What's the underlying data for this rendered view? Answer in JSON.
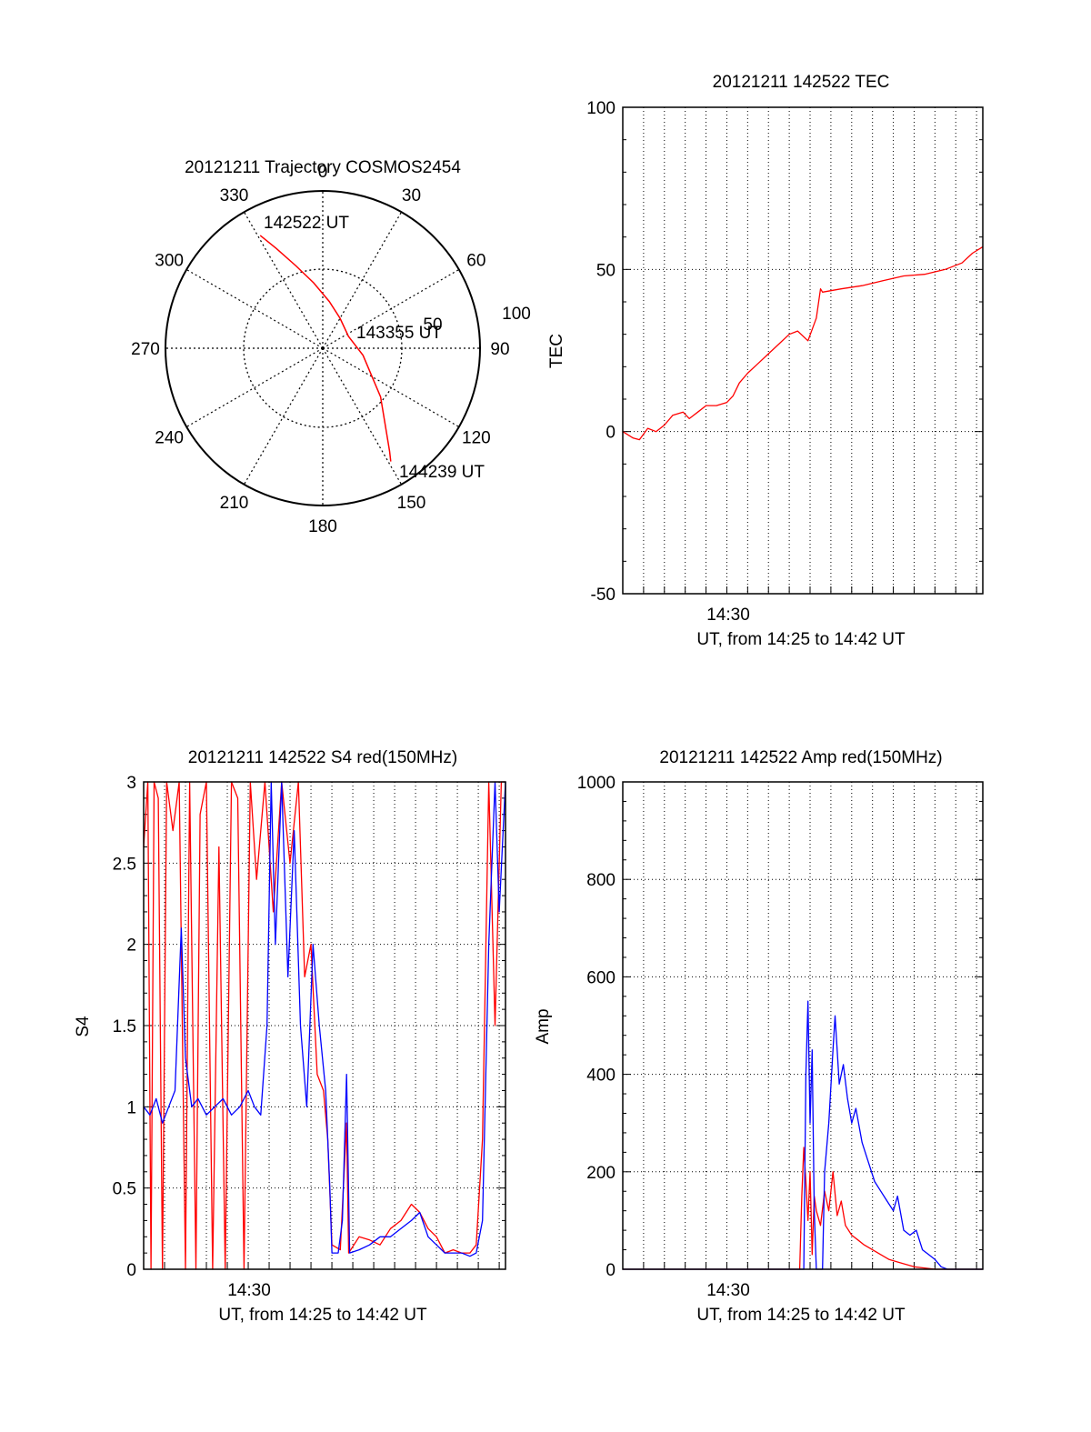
{
  "figure": {
    "colors": {
      "red": "#ff0000",
      "blue": "#0000ff",
      "axis": "#000000"
    }
  },
  "chart_data": [
    {
      "type": "polar-trajectory",
      "title": "20121211 Trajectory COSMOS2454",
      "azimuth_ticks": [
        "0",
        "30",
        "60",
        "90",
        "120",
        "150",
        "180",
        "210",
        "240",
        "270",
        "300",
        "330"
      ],
      "elevation_ring_labels": [
        "50",
        "100"
      ],
      "track": {
        "color": "#ff0000",
        "points_az_r": [
          [
            -29,
            0.82
          ],
          [
            -25,
            0.7
          ],
          [
            -18,
            0.55
          ],
          [
            -8,
            0.42
          ],
          [
            8,
            0.3
          ],
          [
            30,
            0.22
          ],
          [
            65,
            0.18
          ],
          [
            100,
            0.26
          ],
          [
            130,
            0.48
          ],
          [
            147,
            0.78
          ],
          [
            149,
            0.84
          ]
        ]
      },
      "annotations": {
        "start": "142522 UT",
        "middle": "143355 UT",
        "end": "144239 UT"
      }
    },
    {
      "type": "line",
      "title": "20121211 142522 TEC",
      "xlabel": "UT, from 14:25 to 14:42 UT",
      "ylabel": "TEC",
      "xlim": [
        0,
        17.3
      ],
      "ylim": [
        -50,
        100
      ],
      "yticks": [
        "-50",
        "0",
        "50",
        "100"
      ],
      "xtick_label": "14:30",
      "xtick_at": 5,
      "grid": true,
      "series": [
        {
          "color": "#ff0000",
          "points": [
            [
              0.0,
              0
            ],
            [
              0.5,
              -2
            ],
            [
              0.8,
              -2.5
            ],
            [
              1.2,
              1
            ],
            [
              1.6,
              0
            ],
            [
              2.0,
              2
            ],
            [
              2.4,
              5
            ],
            [
              2.9,
              6
            ],
            [
              3.2,
              4
            ],
            [
              3.6,
              6
            ],
            [
              4.0,
              8
            ],
            [
              4.5,
              8
            ],
            [
              5.0,
              9
            ],
            [
              5.3,
              11
            ],
            [
              5.6,
              15
            ],
            [
              6.0,
              18
            ],
            [
              6.5,
              21
            ],
            [
              7.0,
              24
            ],
            [
              7.5,
              27
            ],
            [
              8.0,
              30
            ],
            [
              8.4,
              31
            ],
            [
              8.9,
              28
            ],
            [
              9.3,
              35
            ],
            [
              9.5,
              44
            ],
            [
              9.6,
              43
            ],
            [
              10.5,
              44
            ],
            [
              11.5,
              45
            ],
            [
              12.5,
              46.5
            ],
            [
              13.5,
              48
            ],
            [
              14.5,
              48.5
            ],
            [
              15.5,
              50
            ],
            [
              16.3,
              52
            ],
            [
              16.8,
              55
            ],
            [
              17.3,
              57
            ]
          ]
        }
      ]
    },
    {
      "type": "line",
      "title": "20121211 142522 S4 red(150MHz)",
      "xlabel": "UT, from 14:25 to 14:42 UT",
      "ylabel": "S4",
      "xlim": [
        0,
        17.3
      ],
      "ylim": [
        0,
        3
      ],
      "yticks": [
        "0",
        "0.5",
        "1",
        "1.5",
        "2",
        "2.5",
        "3"
      ],
      "xtick_label": "14:30",
      "xtick_at": 5,
      "grid": true,
      "series": [
        {
          "color": "#ff0000",
          "points": [
            [
              0.0,
              2.6
            ],
            [
              0.2,
              3.0
            ],
            [
              0.35,
              0
            ],
            [
              0.5,
              3.0
            ],
            [
              0.7,
              2.9
            ],
            [
              0.9,
              0
            ],
            [
              1.1,
              3.0
            ],
            [
              1.4,
              2.7
            ],
            [
              1.7,
              3.0
            ],
            [
              2.0,
              0
            ],
            [
              2.2,
              3.0
            ],
            [
              2.5,
              0
            ],
            [
              2.7,
              2.8
            ],
            [
              3.0,
              3.0
            ],
            [
              3.3,
              0
            ],
            [
              3.6,
              2.6
            ],
            [
              3.9,
              0
            ],
            [
              4.2,
              3.0
            ],
            [
              4.5,
              2.9
            ],
            [
              4.8,
              0
            ],
            [
              5.1,
              3.0
            ],
            [
              5.4,
              2.4
            ],
            [
              5.8,
              3.0
            ],
            [
              6.2,
              2.2
            ],
            [
              6.6,
              3.0
            ],
            [
              7.0,
              2.5
            ],
            [
              7.4,
              3.0
            ],
            [
              7.7,
              1.8
            ],
            [
              8.0,
              2.0
            ],
            [
              8.3,
              1.2
            ],
            [
              8.6,
              1.1
            ],
            [
              8.8,
              0.8
            ],
            [
              9.0,
              0.15
            ],
            [
              9.4,
              0.12
            ],
            [
              9.7,
              0.9
            ],
            [
              9.8,
              0.1
            ],
            [
              10.3,
              0.2
            ],
            [
              10.8,
              0.18
            ],
            [
              11.3,
              0.15
            ],
            [
              11.8,
              0.25
            ],
            [
              12.3,
              0.3
            ],
            [
              12.8,
              0.4
            ],
            [
              13.2,
              0.35
            ],
            [
              13.6,
              0.25
            ],
            [
              14.0,
              0.2
            ],
            [
              14.4,
              0.1
            ],
            [
              14.8,
              0.12
            ],
            [
              15.2,
              0.1
            ],
            [
              15.6,
              0.1
            ],
            [
              15.9,
              0.15
            ],
            [
              16.2,
              0.8
            ],
            [
              16.5,
              3.0
            ],
            [
              16.8,
              1.5
            ],
            [
              17.1,
              3.0
            ],
            [
              17.3,
              3.0
            ]
          ]
        },
        {
          "color": "#0000ff",
          "points": [
            [
              0.0,
              1.0
            ],
            [
              0.3,
              0.95
            ],
            [
              0.6,
              1.05
            ],
            [
              0.9,
              0.9
            ],
            [
              1.2,
              1.0
            ],
            [
              1.5,
              1.1
            ],
            [
              1.8,
              2.1
            ],
            [
              2.0,
              1.3
            ],
            [
              2.3,
              1.0
            ],
            [
              2.6,
              1.05
            ],
            [
              3.0,
              0.95
            ],
            [
              3.4,
              1.0
            ],
            [
              3.8,
              1.05
            ],
            [
              4.2,
              0.95
            ],
            [
              4.6,
              1.0
            ],
            [
              5.0,
              1.1
            ],
            [
              5.3,
              1.0
            ],
            [
              5.6,
              0.95
            ],
            [
              5.9,
              1.5
            ],
            [
              6.1,
              3.0
            ],
            [
              6.3,
              2.0
            ],
            [
              6.6,
              3.0
            ],
            [
              6.9,
              1.8
            ],
            [
              7.2,
              2.7
            ],
            [
              7.5,
              1.5
            ],
            [
              7.8,
              1.0
            ],
            [
              8.1,
              2.0
            ],
            [
              8.4,
              1.5
            ],
            [
              8.7,
              1.1
            ],
            [
              8.9,
              0.5
            ],
            [
              9.0,
              0.1
            ],
            [
              9.3,
              0.1
            ],
            [
              9.5,
              0.3
            ],
            [
              9.7,
              1.2
            ],
            [
              9.85,
              0.1
            ],
            [
              10.3,
              0.12
            ],
            [
              10.8,
              0.15
            ],
            [
              11.3,
              0.2
            ],
            [
              11.8,
              0.2
            ],
            [
              12.3,
              0.25
            ],
            [
              12.8,
              0.3
            ],
            [
              13.2,
              0.35
            ],
            [
              13.6,
              0.2
            ],
            [
              14.0,
              0.15
            ],
            [
              14.4,
              0.1
            ],
            [
              14.8,
              0.1
            ],
            [
              15.2,
              0.1
            ],
            [
              15.6,
              0.08
            ],
            [
              15.9,
              0.1
            ],
            [
              16.2,
              0.3
            ],
            [
              16.5,
              2.0
            ],
            [
              16.8,
              3.0
            ],
            [
              17.0,
              2.2
            ],
            [
              17.3,
              3.0
            ]
          ]
        }
      ]
    },
    {
      "type": "line",
      "title": "20121211 142522 Amp red(150MHz)",
      "xlabel": "UT, from 14:25 to 14:42 UT",
      "ylabel": "Amp",
      "xlim": [
        0,
        17.3
      ],
      "ylim": [
        0,
        1000
      ],
      "yticks": [
        "0",
        "200",
        "400",
        "600",
        "800",
        "1000"
      ],
      "xtick_label": "14:30",
      "xtick_at": 5,
      "grid": true,
      "series": [
        {
          "color": "#ff0000",
          "points": [
            [
              0.0,
              0
            ],
            [
              8.5,
              0
            ],
            [
              8.6,
              150
            ],
            [
              8.7,
              250
            ],
            [
              8.8,
              180
            ],
            [
              8.9,
              100
            ],
            [
              9.0,
              200
            ],
            [
              9.1,
              30
            ],
            [
              9.2,
              150
            ],
            [
              9.3,
              120
            ],
            [
              9.5,
              90
            ],
            [
              9.7,
              160
            ],
            [
              9.9,
              120
            ],
            [
              10.1,
              200
            ],
            [
              10.3,
              110
            ],
            [
              10.5,
              140
            ],
            [
              10.7,
              90
            ],
            [
              11.0,
              70
            ],
            [
              11.3,
              60
            ],
            [
              11.6,
              50
            ],
            [
              12.0,
              40
            ],
            [
              12.4,
              30
            ],
            [
              12.8,
              20
            ],
            [
              13.2,
              15
            ],
            [
              13.6,
              10
            ],
            [
              14.0,
              5
            ],
            [
              14.4,
              3
            ],
            [
              15.0,
              0
            ],
            [
              17.3,
              0
            ]
          ]
        },
        {
          "color": "#0000ff",
          "points": [
            [
              0.0,
              0
            ],
            [
              8.7,
              0
            ],
            [
              8.8,
              400
            ],
            [
              8.9,
              550
            ],
            [
              9.0,
              300
            ],
            [
              9.1,
              450
            ],
            [
              9.2,
              120
            ],
            [
              9.3,
              0
            ],
            [
              9.6,
              0
            ],
            [
              9.7,
              200
            ],
            [
              9.9,
              300
            ],
            [
              10.1,
              450
            ],
            [
              10.2,
              520
            ],
            [
              10.4,
              380
            ],
            [
              10.6,
              420
            ],
            [
              10.8,
              350
            ],
            [
              11.0,
              300
            ],
            [
              11.2,
              330
            ],
            [
              11.5,
              260
            ],
            [
              11.8,
              220
            ],
            [
              12.1,
              180
            ],
            [
              12.4,
              160
            ],
            [
              12.7,
              140
            ],
            [
              13.0,
              120
            ],
            [
              13.2,
              150
            ],
            [
              13.5,
              80
            ],
            [
              13.8,
              70
            ],
            [
              14.1,
              80
            ],
            [
              14.4,
              40
            ],
            [
              14.7,
              30
            ],
            [
              15.0,
              20
            ],
            [
              15.3,
              5
            ],
            [
              15.6,
              0
            ],
            [
              17.3,
              0
            ]
          ]
        }
      ]
    }
  ]
}
